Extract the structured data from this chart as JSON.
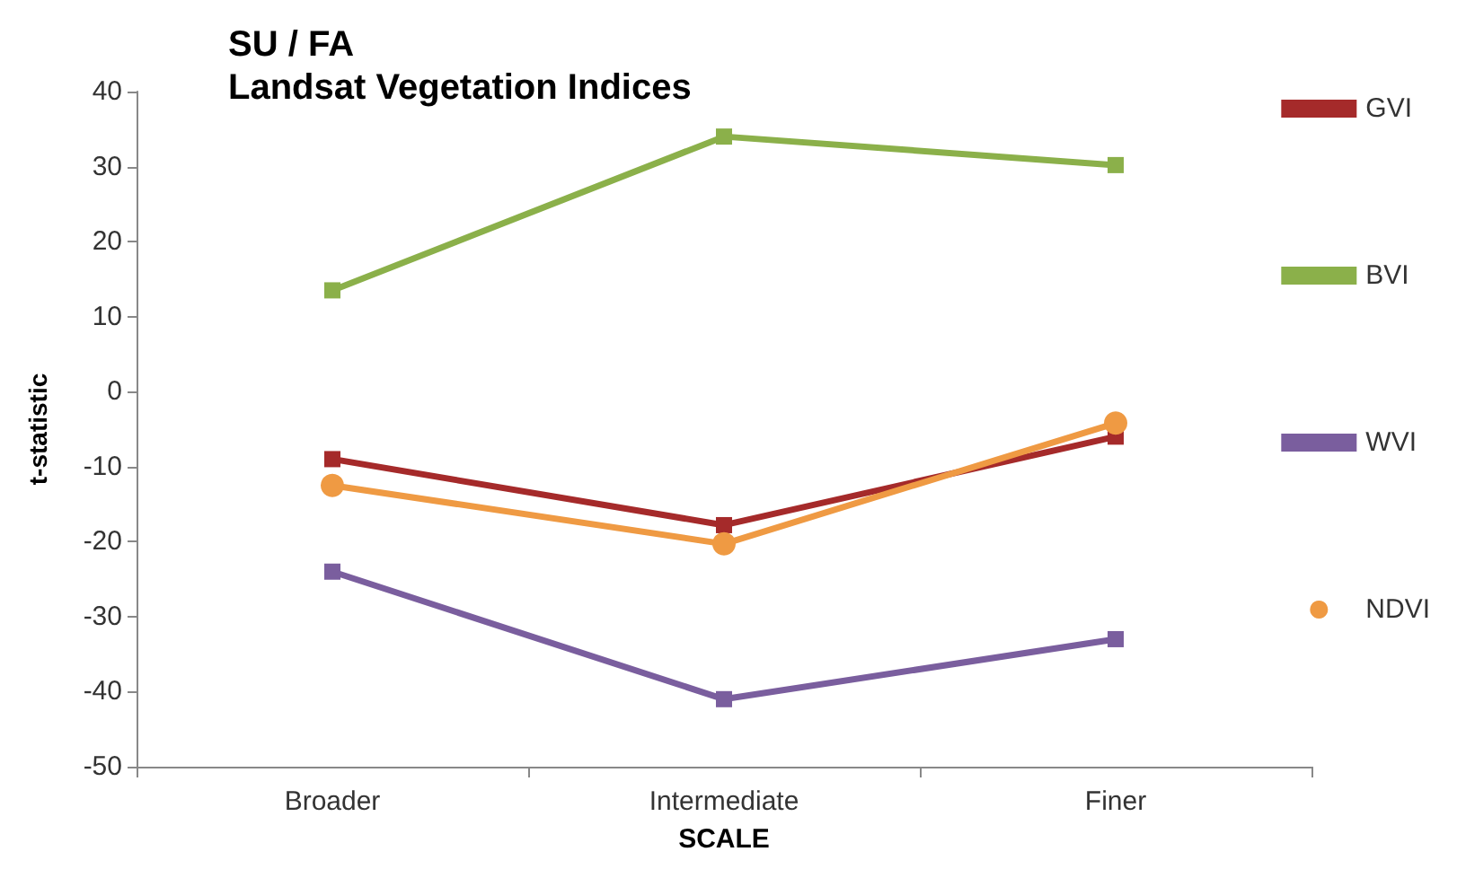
{
  "chart_data": {
    "type": "line",
    "title": "SU / FA\nLandsat Vegetation Indices",
    "xlabel": "SCALE",
    "ylabel": "t-statistic",
    "categories": [
      "Broader",
      "Intermediate",
      "Finer"
    ],
    "series": [
      {
        "name": "GVI",
        "color": "#a52a2a",
        "marker": "square",
        "values": [
          -9,
          -17.8,
          -6
        ]
      },
      {
        "name": "BVI",
        "color": "#8bb04a",
        "marker": "square",
        "values": [
          13.5,
          34,
          30.2
        ]
      },
      {
        "name": "WVI",
        "color": "#7a5e9e",
        "marker": "square",
        "values": [
          -24,
          -41,
          -33
        ]
      },
      {
        "name": "NDVI",
        "color": "#ef9a43",
        "marker": "circle",
        "values": [
          -12.5,
          -20.3,
          -4.2
        ]
      }
    ],
    "ylim": [
      -50,
      40
    ],
    "yticks": [
      -50,
      -40,
      -30,
      -20,
      -10,
      0,
      10,
      20,
      30,
      40
    ],
    "grid": false,
    "legend": "right",
    "line_style": "solid"
  }
}
